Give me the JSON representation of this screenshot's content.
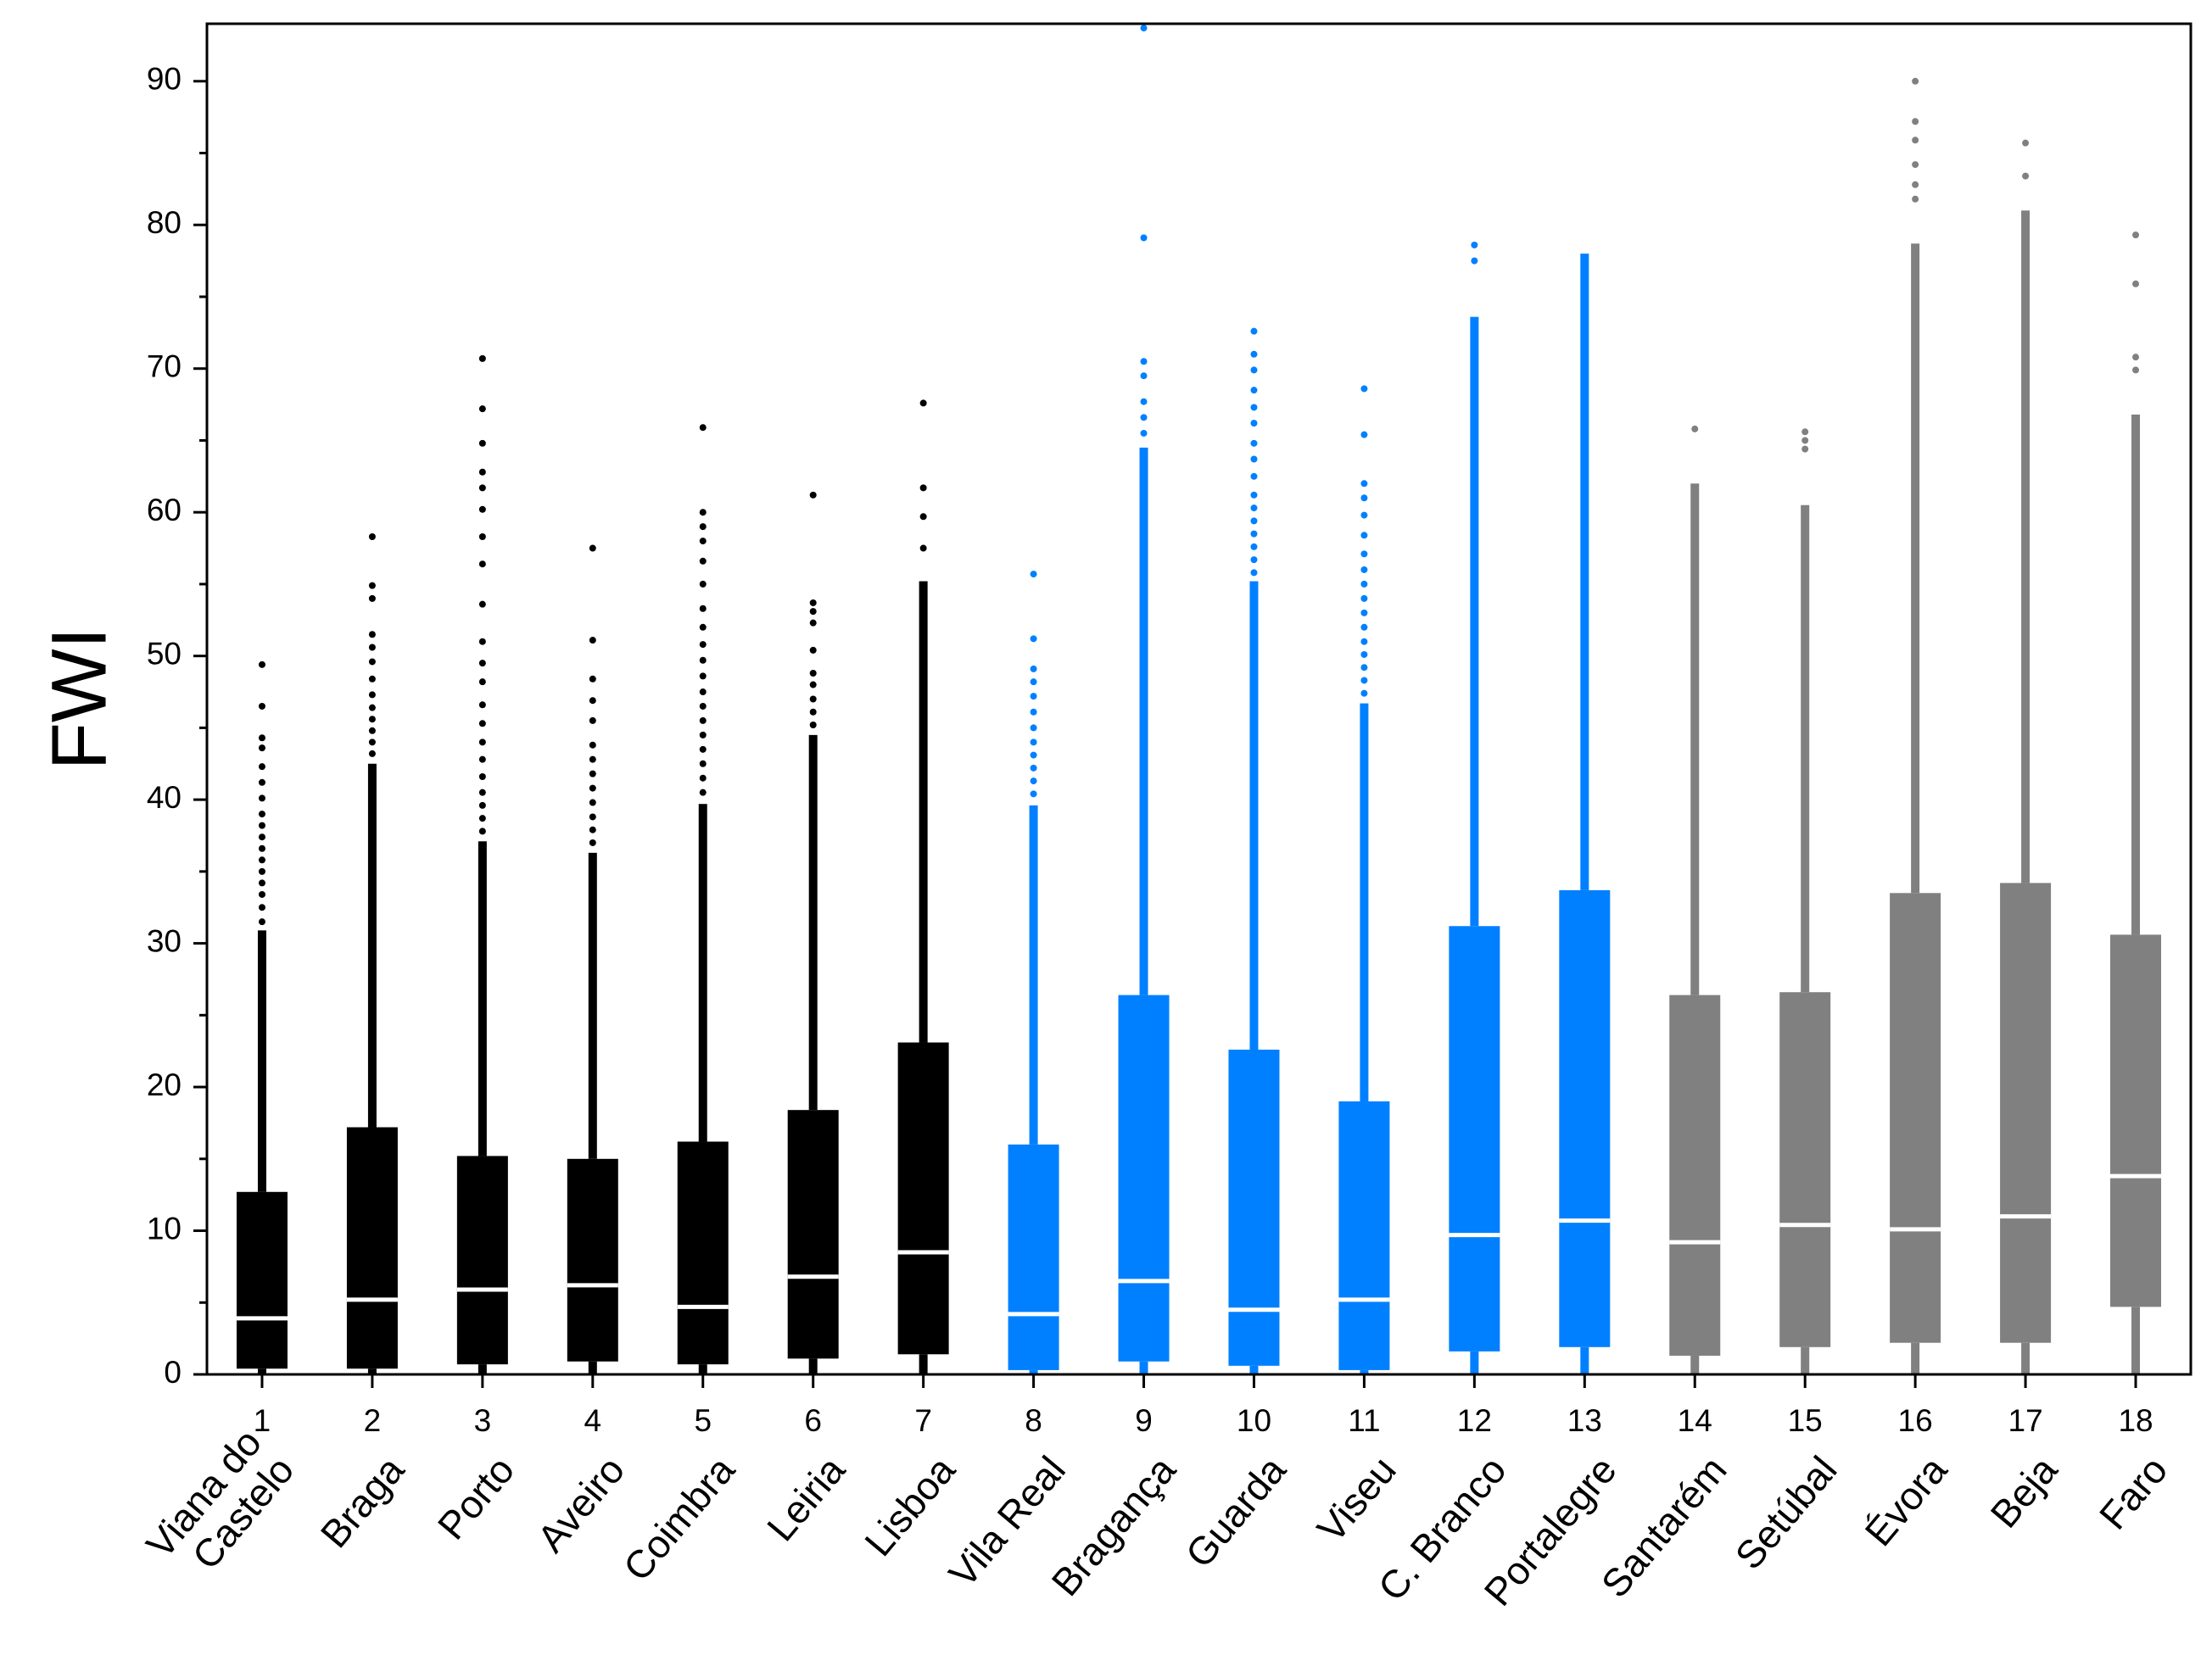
{
  "chart_data": {
    "type": "box",
    "y_label": "FWI",
    "ylim": [
      0,
      94
    ],
    "yticks": [
      0,
      10,
      20,
      30,
      40,
      50,
      60,
      70,
      80,
      90
    ],
    "boxes": [
      {
        "label": "1",
        "name": [
          "Viana do",
          "Castelo"
        ],
        "color": "#000000",
        "low": 0,
        "q1": 0.4,
        "median": 3.9,
        "q3": 12.7,
        "high": 30.9,
        "outliers": [
          31.5,
          32.5,
          33.4,
          34.2,
          35.0,
          35.8,
          36.6,
          37.4,
          38.2,
          39.0,
          40.1,
          41.2,
          42.3,
          43.6,
          44.3,
          46.5,
          49.4
        ]
      },
      {
        "label": "2",
        "name": [
          "Braga"
        ],
        "color": "#000000",
        "low": 0,
        "q1": 0.4,
        "median": 5.2,
        "q3": 17.2,
        "high": 42.5,
        "outliers": [
          43.2,
          44.0,
          44.8,
          45.6,
          46.4,
          47.3,
          48.4,
          49.6,
          50.6,
          51.5,
          54.0,
          54.9,
          58.3
        ]
      },
      {
        "label": "3",
        "name": [
          "Porto"
        ],
        "color": "#000000",
        "low": 0,
        "q1": 0.7,
        "median": 5.9,
        "q3": 15.2,
        "high": 37.1,
        "outliers": [
          37.8,
          38.7,
          39.6,
          40.5,
          41.6,
          42.8,
          44.0,
          45.3,
          46.6,
          48.2,
          49.5,
          51.0,
          53.6,
          56.4,
          58.3,
          60.2,
          61.7,
          62.8,
          64.8,
          67.2,
          70.7
        ]
      },
      {
        "label": "4",
        "name": [
          "Aveiro"
        ],
        "color": "#000000",
        "low": 0,
        "q1": 0.9,
        "median": 6.2,
        "q3": 15.0,
        "high": 36.3,
        "outliers": [
          37.0,
          37.9,
          38.8,
          39.8,
          40.8,
          41.8,
          42.8,
          43.8,
          45.5,
          46.9,
          48.4,
          51.1,
          57.5
        ]
      },
      {
        "label": "5",
        "name": [
          "Coimbra"
        ],
        "color": "#000000",
        "low": 0,
        "q1": 0.7,
        "median": 4.7,
        "q3": 16.2,
        "high": 39.7,
        "outliers": [
          40.5,
          41.5,
          42.5,
          43.5,
          44.5,
          45.5,
          46.5,
          47.5,
          48.6,
          49.7,
          50.8,
          52.0,
          53.3,
          55.0,
          56.6,
          58.0,
          59.0,
          60.0,
          65.9
        ]
      },
      {
        "label": "6",
        "name": [
          "Leiria"
        ],
        "color": "#000000",
        "low": 0,
        "q1": 1.1,
        "median": 6.8,
        "q3": 18.4,
        "high": 44.5,
        "outliers": [
          45.2,
          46.1,
          47.0,
          48.0,
          48.8,
          50.4,
          52.3,
          53.1,
          53.7,
          61.2
        ]
      },
      {
        "label": "7",
        "name": [
          "Lisboa"
        ],
        "color": "#000000",
        "low": 0,
        "q1": 1.4,
        "median": 8.5,
        "q3": 23.1,
        "high": 55.2,
        "outliers": [
          57.5,
          59.7,
          61.7,
          67.6
        ]
      },
      {
        "label": "8",
        "name": [
          "Vila Real"
        ],
        "color": "#0080ff",
        "low": 0,
        "q1": 0.3,
        "median": 4.2,
        "q3": 16.0,
        "high": 39.6,
        "outliers": [
          40.4,
          41.3,
          42.2,
          43.1,
          44.0,
          45.0,
          46.1,
          47.2,
          48.2,
          49.1,
          51.2,
          55.7
        ]
      },
      {
        "label": "9",
        "name": [
          "Bragança"
        ],
        "color": "#0080ff",
        "low": 0,
        "q1": 0.9,
        "median": 6.5,
        "q3": 26.4,
        "high": 64.5,
        "outliers": [
          65.5,
          66.6,
          67.7,
          69.5,
          70.5,
          79.1,
          93.7
        ]
      },
      {
        "label": "10",
        "name": [
          "Guarda"
        ],
        "color": "#0080ff",
        "low": 0,
        "q1": 0.6,
        "median": 4.5,
        "q3": 22.6,
        "high": 55.2,
        "outliers": [
          55.8,
          56.7,
          57.6,
          58.5,
          59.4,
          60.3,
          61.2,
          62.5,
          63.7,
          64.8,
          66.2,
          67.3,
          68.5,
          69.9,
          71.0,
          72.6
        ]
      },
      {
        "label": "11",
        "name": [
          "Viseu"
        ],
        "color": "#0080ff",
        "low": 0,
        "q1": 0.3,
        "median": 5.2,
        "q3": 19.0,
        "high": 46.7,
        "outliers": [
          47.4,
          48.3,
          49.2,
          50.1,
          51.0,
          52.0,
          53.0,
          54.0,
          55.0,
          56.0,
          57.1,
          58.4,
          59.8,
          61.0,
          62.0,
          65.4,
          68.6
        ]
      },
      {
        "label": "12",
        "name": [
          "C. Branco"
        ],
        "color": "#0080ff",
        "low": 0,
        "q1": 1.6,
        "median": 9.7,
        "q3": 31.2,
        "high": 73.6,
        "outliers": [
          77.5,
          78.6
        ]
      },
      {
        "label": "13",
        "name": [
          "Portalegre"
        ],
        "color": "#0080ff",
        "low": 0,
        "q1": 1.9,
        "median": 10.7,
        "q3": 33.7,
        "high": 78.0,
        "outliers": []
      },
      {
        "label": "14",
        "name": [
          "Santarém"
        ],
        "color": "#808080",
        "low": 0,
        "q1": 1.3,
        "median": 9.2,
        "q3": 26.4,
        "high": 62.0,
        "outliers": [
          65.8
        ]
      },
      {
        "label": "15",
        "name": [
          "Setúbal"
        ],
        "color": "#808080",
        "low": 0,
        "q1": 1.9,
        "median": 10.4,
        "q3": 26.6,
        "high": 60.5,
        "outliers": [
          64.4,
          65.0,
          65.6
        ]
      },
      {
        "label": "16",
        "name": [
          "Évora"
        ],
        "color": "#808080",
        "low": 0,
        "q1": 2.2,
        "median": 10.1,
        "q3": 33.5,
        "high": 78.7,
        "outliers": [
          81.8,
          82.8,
          84.2,
          85.9,
          87.2,
          90.0
        ]
      },
      {
        "label": "17",
        "name": [
          "Beja"
        ],
        "color": "#808080",
        "low": 0,
        "q1": 2.2,
        "median": 11.0,
        "q3": 34.2,
        "high": 81.0,
        "outliers": [
          83.4,
          85.7
        ]
      },
      {
        "label": "18",
        "name": [
          "Faro"
        ],
        "color": "#808080",
        "low": 0,
        "q1": 4.7,
        "median": 13.8,
        "q3": 30.6,
        "high": 66.8,
        "outliers": [
          69.9,
          70.8,
          75.9,
          79.3
        ]
      }
    ]
  }
}
